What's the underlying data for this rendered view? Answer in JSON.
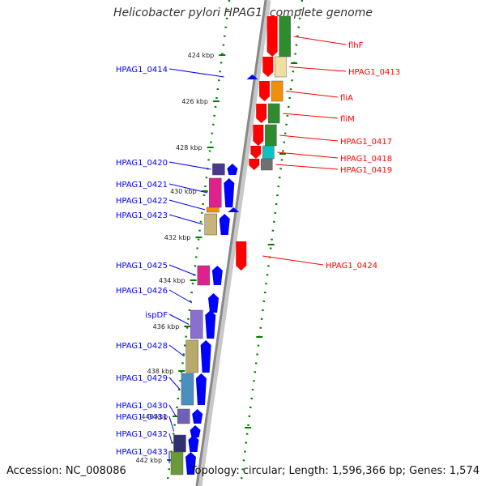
{
  "title": "Helicobacter pylori HPAG1, complete genome",
  "accession": "Accession: NC_008086",
  "topology": "Topology: circular; Length: 1,596,366 bp; Genes: 1,574",
  "colors": {
    "forward": "#0000ff",
    "reverse": "#ff0000",
    "ticks": "#008000",
    "backbone": "#888888"
  },
  "ticks": [
    {
      "label": "424 kbp"
    },
    {
      "label": "426 kbp"
    },
    {
      "label": "428 kbp"
    },
    {
      "label": "430 kbp"
    },
    {
      "label": "432 kbp"
    },
    {
      "label": "434 kbp"
    },
    {
      "label": "436 kbp"
    },
    {
      "label": "438 kbp"
    },
    {
      "label": "440 kbp"
    },
    {
      "label": "442 kbp"
    }
  ],
  "forward_genes": [
    {
      "label": "HPAG1_0414",
      "color": "#0000cc"
    },
    {
      "label": "HPAG1_0420",
      "color": "#4b3a8c"
    },
    {
      "label": "HPAG1_0421",
      "color": "#e0208c"
    },
    {
      "label": "HPAG1_0422",
      "color": "#f0900a"
    },
    {
      "label": "HPAG1_0423",
      "color": "#c8b47a"
    },
    {
      "label": "HPAG1_0425",
      "color": "#e0208c"
    },
    {
      "label": "HPAG1_0426",
      "color": "#ffffff"
    },
    {
      "label": "ispDF",
      "color": "#8a6fd0"
    },
    {
      "label": "HPAG1_0428",
      "color": "#b8aa6a"
    },
    {
      "label": "HPAG1_0429",
      "color": "#4a8fc0"
    },
    {
      "label": "HPAG1_0430",
      "color": "#7060b8"
    },
    {
      "label": "HPAG1_0431",
      "color": "#ffffff"
    },
    {
      "label": "HPAG1_0432",
      "color": "#303070"
    },
    {
      "label": "HPAG1_0433",
      "color": "#6a9a3a"
    }
  ],
  "reverse_genes": [
    {
      "label": "flhF",
      "color": "#2e8b2e"
    },
    {
      "label": "HPAG1_0413",
      "color": "#f0e0a0"
    },
    {
      "label": "fliA",
      "color": "#f0900a"
    },
    {
      "label": "fliM",
      "color": "#2e8b2e"
    },
    {
      "label": "HPAG1_0417",
      "color": "#2e8b2e"
    },
    {
      "label": "HPAG1_0418",
      "color": "#10c0c0"
    },
    {
      "label": "HPAG1_0419",
      "color": "#707070"
    },
    {
      "label": "HPAG1_0424",
      "color": "#ffffff"
    }
  ]
}
